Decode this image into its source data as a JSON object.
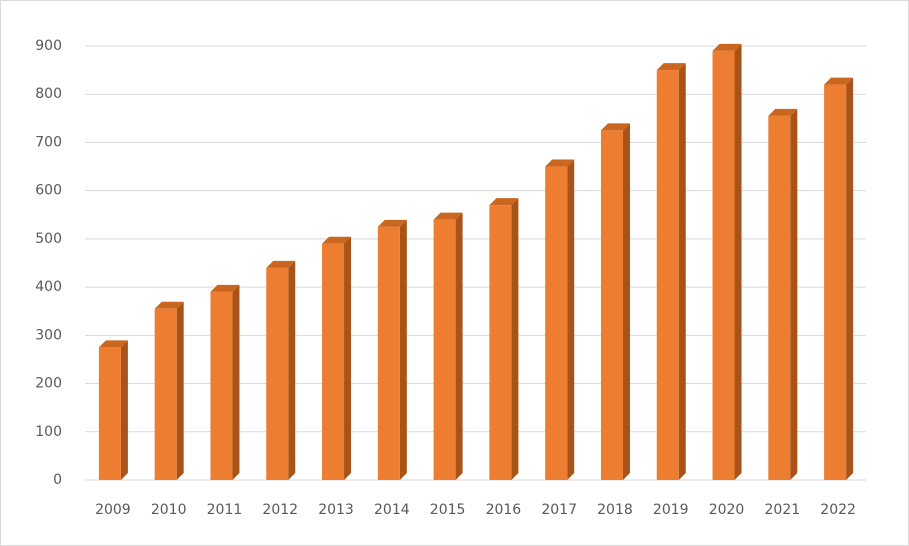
{
  "chart_data": {
    "type": "bar",
    "categories": [
      "2009",
      "2010",
      "2011",
      "2012",
      "2013",
      "2014",
      "2015",
      "2016",
      "2017",
      "2018",
      "2019",
      "2020",
      "2021",
      "2022"
    ],
    "values": [
      275,
      355,
      390,
      440,
      490,
      525,
      540,
      570,
      650,
      725,
      850,
      890,
      755,
      820
    ],
    "color": "#ed7d31",
    "ylim": [
      0,
      900
    ],
    "yticks": [
      0,
      100,
      200,
      300,
      400,
      500,
      600,
      700,
      800,
      900
    ],
    "grid": true
  }
}
